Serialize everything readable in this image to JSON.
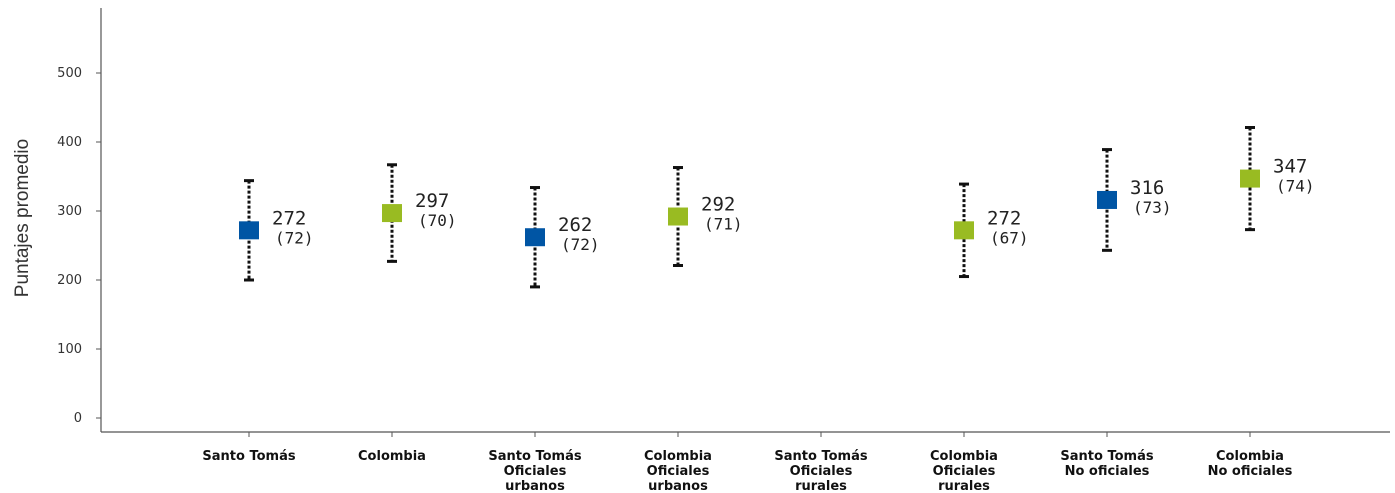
{
  "chart_data": {
    "type": "scatter",
    "ylabel": "Puntajes promedio",
    "ylim": [
      0,
      500
    ],
    "yticks": [
      0,
      100,
      200,
      300,
      400,
      500
    ],
    "grid": false,
    "categories": [
      [
        "Santo Tomás"
      ],
      [
        "Colombia"
      ],
      [
        "Santo Tomás",
        "Oficiales",
        "urbanos"
      ],
      [
        "Colombia",
        "Oficiales",
        "urbanos"
      ],
      [
        "Santo Tomás",
        "Oficiales",
        "rurales"
      ],
      [
        "Colombia",
        "Oficiales",
        "rurales"
      ],
      [
        "Santo Tomás",
        "No oficiales"
      ],
      [
        "Colombia",
        "No oficiales"
      ]
    ],
    "points": [
      {
        "mean": 272,
        "sd": 72,
        "low": 200,
        "high": 344,
        "value_label": "272",
        "sd_label": "(72)",
        "color": "#0055a4"
      },
      {
        "mean": 297,
        "sd": 70,
        "low": 227,
        "high": 367,
        "value_label": "297",
        "sd_label": "(70)",
        "color": "#99bb22"
      },
      {
        "mean": 262,
        "sd": 72,
        "low": 190,
        "high": 334,
        "value_label": "262",
        "sd_label": "(72)",
        "color": "#0055a4"
      },
      {
        "mean": 292,
        "sd": 71,
        "low": 221,
        "high": 363,
        "value_label": "292",
        "sd_label": "(71)",
        "color": "#99bb22"
      },
      null,
      {
        "mean": 272,
        "sd": 67,
        "low": 205,
        "high": 339,
        "value_label": "272",
        "sd_label": "(67)",
        "color": "#99bb22"
      },
      {
        "mean": 316,
        "sd": 73,
        "low": 243,
        "high": 389,
        "value_label": "316",
        "sd_label": "(73)",
        "color": "#0055a4"
      },
      {
        "mean": 347,
        "sd": 74,
        "low": 273,
        "high": 421,
        "value_label": "347",
        "sd_label": "(74)",
        "color": "#99bb22"
      }
    ]
  }
}
